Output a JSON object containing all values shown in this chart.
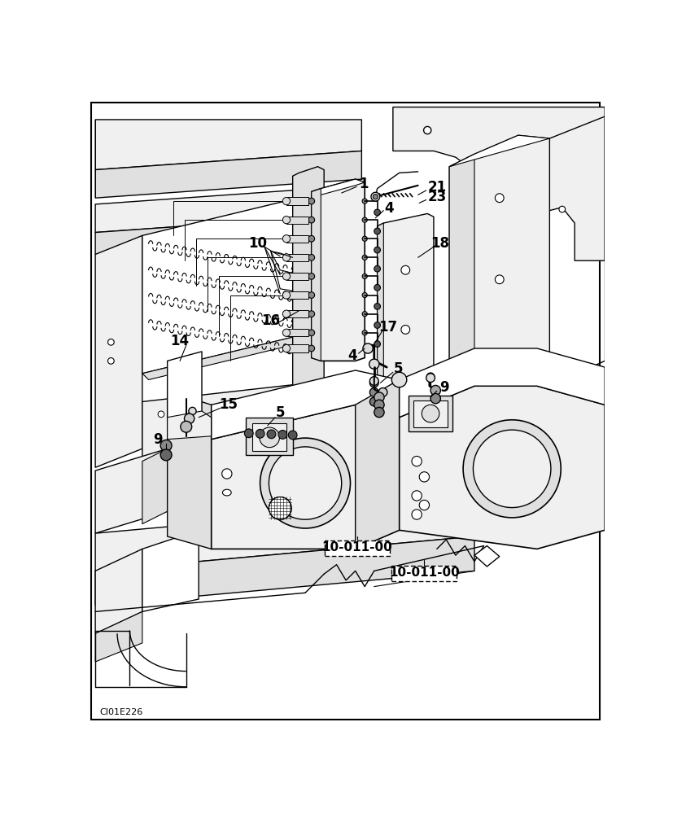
{
  "background_color": "#ffffff",
  "line_color": "#000000",
  "light_fill": "#f0f0f0",
  "medium_fill": "#e0e0e0",
  "dark_fill": "#c8c8c8",
  "image_code": "CI01E226",
  "ref_box1_text": "10-011-00",
  "ref_box2_text": "10-011-00",
  "label_fontsize": 12,
  "ref_fontsize": 11
}
